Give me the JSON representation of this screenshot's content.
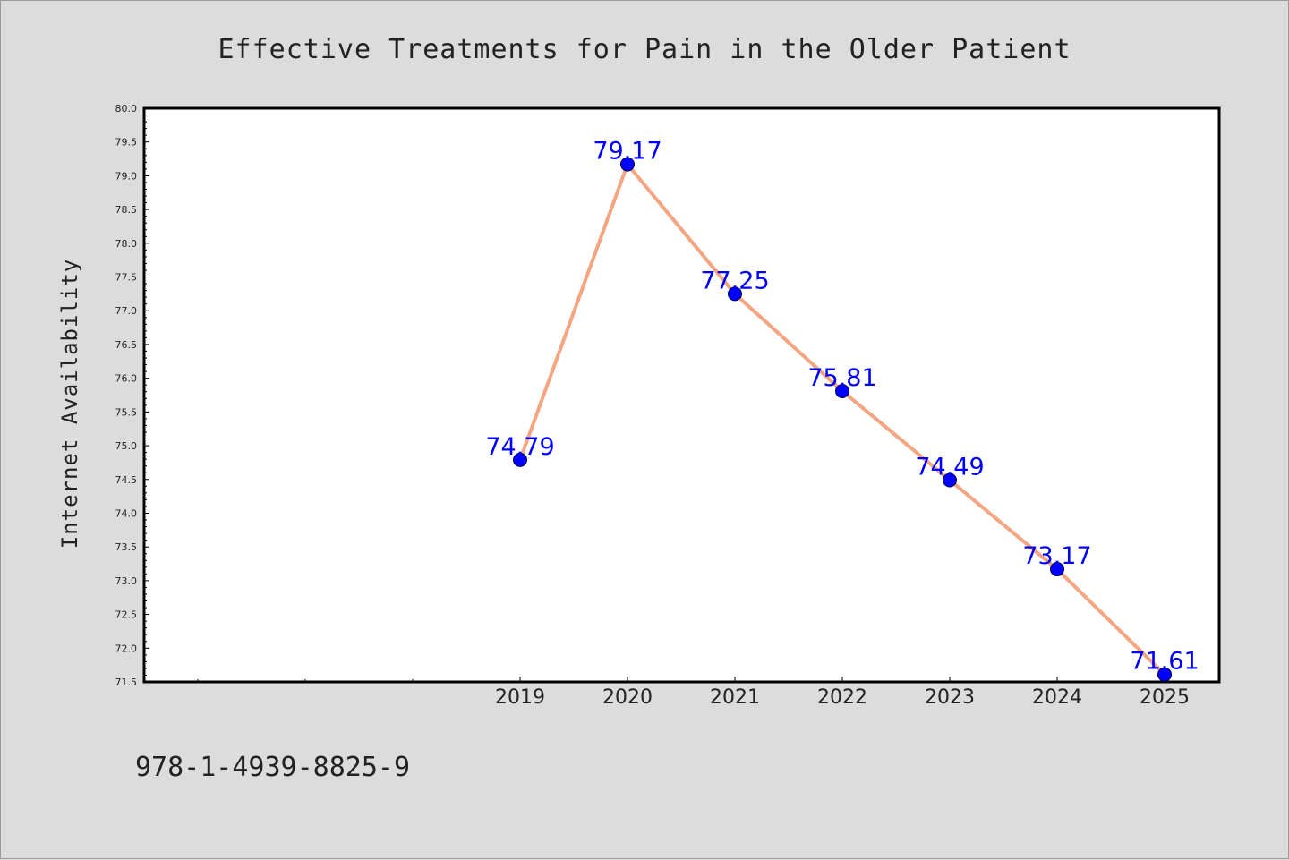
{
  "chart_data": {
    "type": "line",
    "title": "Effective Treatments for Pain in the Older Patient",
    "xlabel": "",
    "ylabel": "Internet Availability",
    "categories": [
      "2019",
      "2020",
      "2021",
      "2022",
      "2023",
      "2024",
      "2025"
    ],
    "series": [
      {
        "values": [
          74.79,
          79.17,
          77.25,
          75.81,
          74.49,
          73.17,
          71.61
        ],
        "point_labels": [
          "74.79",
          "79.17",
          "77.25",
          "75.81",
          "74.49",
          "73.17",
          "71.61"
        ]
      }
    ],
    "ylim": [
      71.5,
      80.0
    ],
    "yticks": [
      "71.5",
      "72.0",
      "72.5",
      "73.0",
      "73.5",
      "74.0",
      "74.5",
      "75.0",
      "75.5",
      "76.0",
      "76.5",
      "77.0",
      "77.5",
      "78.0",
      "78.5",
      "79.0",
      "79.5",
      "80.0"
    ],
    "grid": false,
    "legend": "none"
  },
  "footer_code": "978-1-4939-8825-9",
  "colors": {
    "background": "#dcdcdc",
    "plot_area": "#ffffff",
    "line": "#f4a582",
    "marker": "#0000ff",
    "point_label": "#0000ff",
    "text": "#222222"
  }
}
